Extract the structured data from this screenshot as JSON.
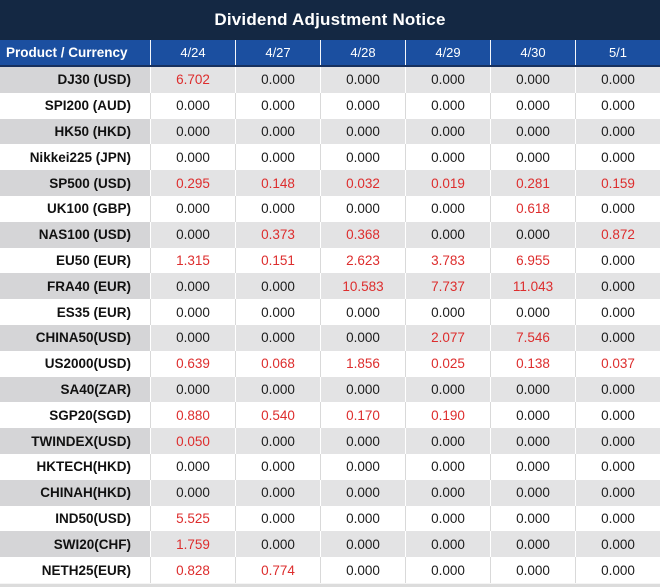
{
  "title_bar": {
    "title": "Dividend Adjustment Notice"
  },
  "colors": {
    "title_bg": "#142843",
    "header_bg": "#1b4fa0",
    "header_border": "#16305e",
    "row_stripe": "#e3e3e4",
    "product_stripe": "#d5d5d7",
    "divider_light": "#d9d9d9",
    "red_value": "#dd2d2d",
    "black_value": "#1c1c1c"
  },
  "table": {
    "columns": [
      "Product / Currency",
      "4/24",
      "4/27",
      "4/28",
      "4/29",
      "4/30",
      "5/1"
    ],
    "rows": [
      {
        "product": "DJ30 (USD)",
        "values": [
          {
            "v": "6.702",
            "red": true
          },
          {
            "v": "0.000",
            "red": false
          },
          {
            "v": "0.000",
            "red": false
          },
          {
            "v": "0.000",
            "red": false
          },
          {
            "v": "0.000",
            "red": false
          },
          {
            "v": "0.000",
            "red": false
          }
        ]
      },
      {
        "product": "SPI200 (AUD)",
        "values": [
          {
            "v": "0.000",
            "red": false
          },
          {
            "v": "0.000",
            "red": false
          },
          {
            "v": "0.000",
            "red": false
          },
          {
            "v": "0.000",
            "red": false
          },
          {
            "v": "0.000",
            "red": false
          },
          {
            "v": "0.000",
            "red": false
          }
        ]
      },
      {
        "product": "HK50 (HKD)",
        "values": [
          {
            "v": "0.000",
            "red": false
          },
          {
            "v": "0.000",
            "red": false
          },
          {
            "v": "0.000",
            "red": false
          },
          {
            "v": "0.000",
            "red": false
          },
          {
            "v": "0.000",
            "red": false
          },
          {
            "v": "0.000",
            "red": false
          }
        ]
      },
      {
        "product": "Nikkei225 (JPN)",
        "values": [
          {
            "v": "0.000",
            "red": false
          },
          {
            "v": "0.000",
            "red": false
          },
          {
            "v": "0.000",
            "red": false
          },
          {
            "v": "0.000",
            "red": false
          },
          {
            "v": "0.000",
            "red": false
          },
          {
            "v": "0.000",
            "red": false
          }
        ]
      },
      {
        "product": "SP500 (USD)",
        "values": [
          {
            "v": "0.295",
            "red": true
          },
          {
            "v": "0.148",
            "red": true
          },
          {
            "v": "0.032",
            "red": true
          },
          {
            "v": "0.019",
            "red": true
          },
          {
            "v": "0.281",
            "red": true
          },
          {
            "v": "0.159",
            "red": true
          }
        ]
      },
      {
        "product": "UK100 (GBP)",
        "values": [
          {
            "v": "0.000",
            "red": false
          },
          {
            "v": "0.000",
            "red": false
          },
          {
            "v": "0.000",
            "red": false
          },
          {
            "v": "0.000",
            "red": false
          },
          {
            "v": "0.618",
            "red": true
          },
          {
            "v": "0.000",
            "red": false
          }
        ]
      },
      {
        "product": "NAS100 (USD)",
        "values": [
          {
            "v": "0.000",
            "red": false
          },
          {
            "v": "0.373",
            "red": true
          },
          {
            "v": "0.368",
            "red": true
          },
          {
            "v": "0.000",
            "red": false
          },
          {
            "v": "0.000",
            "red": false
          },
          {
            "v": "0.872",
            "red": true
          }
        ]
      },
      {
        "product": "EU50 (EUR)",
        "values": [
          {
            "v": "1.315",
            "red": true
          },
          {
            "v": "0.151",
            "red": true
          },
          {
            "v": "2.623",
            "red": true
          },
          {
            "v": "3.783",
            "red": true
          },
          {
            "v": "6.955",
            "red": true
          },
          {
            "v": "0.000",
            "red": false
          }
        ]
      },
      {
        "product": "FRA40 (EUR)",
        "values": [
          {
            "v": "0.000",
            "red": false
          },
          {
            "v": "0.000",
            "red": false
          },
          {
            "v": "10.583",
            "red": true
          },
          {
            "v": "7.737",
            "red": true
          },
          {
            "v": "11.043",
            "red": true
          },
          {
            "v": "0.000",
            "red": false
          }
        ]
      },
      {
        "product": "ES35 (EUR)",
        "values": [
          {
            "v": "0.000",
            "red": false
          },
          {
            "v": "0.000",
            "red": false
          },
          {
            "v": "0.000",
            "red": false
          },
          {
            "v": "0.000",
            "red": false
          },
          {
            "v": "0.000",
            "red": false
          },
          {
            "v": "0.000",
            "red": false
          }
        ]
      },
      {
        "product": "CHINA50(USD)",
        "values": [
          {
            "v": "0.000",
            "red": false
          },
          {
            "v": "0.000",
            "red": false
          },
          {
            "v": "0.000",
            "red": false
          },
          {
            "v": "2.077",
            "red": true
          },
          {
            "v": "7.546",
            "red": true
          },
          {
            "v": "0.000",
            "red": false
          }
        ]
      },
      {
        "product": "US2000(USD)",
        "values": [
          {
            "v": "0.639",
            "red": true
          },
          {
            "v": "0.068",
            "red": true
          },
          {
            "v": "1.856",
            "red": true
          },
          {
            "v": "0.025",
            "red": true
          },
          {
            "v": "0.138",
            "red": true
          },
          {
            "v": "0.037",
            "red": true
          }
        ]
      },
      {
        "product": "SA40(ZAR)",
        "values": [
          {
            "v": "0.000",
            "red": false
          },
          {
            "v": "0.000",
            "red": false
          },
          {
            "v": "0.000",
            "red": false
          },
          {
            "v": "0.000",
            "red": false
          },
          {
            "v": "0.000",
            "red": false
          },
          {
            "v": "0.000",
            "red": false
          }
        ]
      },
      {
        "product": "SGP20(SGD)",
        "values": [
          {
            "v": "0.880",
            "red": true
          },
          {
            "v": "0.540",
            "red": true
          },
          {
            "v": "0.170",
            "red": true
          },
          {
            "v": "0.190",
            "red": true
          },
          {
            "v": "0.000",
            "red": false
          },
          {
            "v": "0.000",
            "red": false
          }
        ]
      },
      {
        "product": "TWINDEX(USD)",
        "values": [
          {
            "v": "0.050",
            "red": true
          },
          {
            "v": "0.000",
            "red": false
          },
          {
            "v": "0.000",
            "red": false
          },
          {
            "v": "0.000",
            "red": false
          },
          {
            "v": "0.000",
            "red": false
          },
          {
            "v": "0.000",
            "red": false
          }
        ]
      },
      {
        "product": "HKTECH(HKD)",
        "values": [
          {
            "v": "0.000",
            "red": false
          },
          {
            "v": "0.000",
            "red": false
          },
          {
            "v": "0.000",
            "red": false
          },
          {
            "v": "0.000",
            "red": false
          },
          {
            "v": "0.000",
            "red": false
          },
          {
            "v": "0.000",
            "red": false
          }
        ]
      },
      {
        "product": "CHINAH(HKD)",
        "values": [
          {
            "v": "0.000",
            "red": false
          },
          {
            "v": "0.000",
            "red": false
          },
          {
            "v": "0.000",
            "red": false
          },
          {
            "v": "0.000",
            "red": false
          },
          {
            "v": "0.000",
            "red": false
          },
          {
            "v": "0.000",
            "red": false
          }
        ]
      },
      {
        "product": "IND50(USD)",
        "values": [
          {
            "v": "5.525",
            "red": true
          },
          {
            "v": "0.000",
            "red": false
          },
          {
            "v": "0.000",
            "red": false
          },
          {
            "v": "0.000",
            "red": false
          },
          {
            "v": "0.000",
            "red": false
          },
          {
            "v": "0.000",
            "red": false
          }
        ]
      },
      {
        "product": "SWI20(CHF)",
        "values": [
          {
            "v": "1.759",
            "red": true
          },
          {
            "v": "0.000",
            "red": false
          },
          {
            "v": "0.000",
            "red": false
          },
          {
            "v": "0.000",
            "red": false
          },
          {
            "v": "0.000",
            "red": false
          },
          {
            "v": "0.000",
            "red": false
          }
        ]
      },
      {
        "product": "NETH25(EUR)",
        "values": [
          {
            "v": "0.828",
            "red": true
          },
          {
            "v": "0.774",
            "red": true
          },
          {
            "v": "0.000",
            "red": false
          },
          {
            "v": "0.000",
            "red": false
          },
          {
            "v": "0.000",
            "red": false
          },
          {
            "v": "0.000",
            "red": false
          }
        ]
      }
    ]
  }
}
